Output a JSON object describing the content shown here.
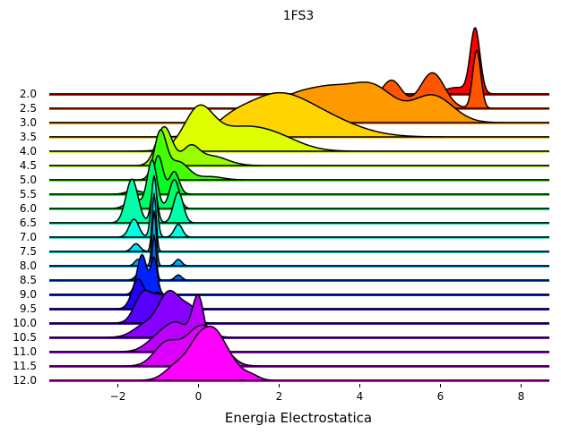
{
  "chart_data": {
    "type": "ridgeline",
    "title": "1FS3",
    "xlabel": "Energia Electrostatica",
    "ylabel": "",
    "xlim": [
      -3.7,
      8.7
    ],
    "xticks": [
      -2,
      0,
      2,
      4,
      6,
      8
    ],
    "xtick_labels": [
      "−2",
      "0",
      "2",
      "4",
      "6",
      "8"
    ],
    "grid": false,
    "legend": "none",
    "series": [
      {
        "name": "2.0",
        "color": "#ff0000",
        "peaks": [
          [
            6.86,
            0.12,
            1.0
          ],
          [
            6.4,
            0.3,
            0.1
          ]
        ]
      },
      {
        "name": "2.5",
        "color": "#ff5500",
        "peaks": [
          [
            6.9,
            0.1,
            0.9
          ],
          [
            5.8,
            0.3,
            0.55
          ],
          [
            4.8,
            0.25,
            0.4
          ],
          [
            4.0,
            0.5,
            0.12
          ]
        ]
      },
      {
        "name": "3.0",
        "color": "#ff9900",
        "peaks": [
          [
            5.8,
            0.5,
            0.42
          ],
          [
            4.4,
            0.5,
            0.4
          ],
          [
            3.2,
            0.8,
            0.55
          ],
          [
            2.2,
            0.4,
            0.15
          ]
        ]
      },
      {
        "name": "3.5",
        "color": "#ffd400",
        "peaks": [
          [
            1.8,
            0.8,
            0.55
          ],
          [
            3.0,
            0.9,
            0.28
          ],
          [
            0.8,
            0.4,
            0.12
          ]
        ]
      },
      {
        "name": "4.0",
        "color": "#ddff00",
        "peaks": [
          [
            0.0,
            0.35,
            0.55
          ],
          [
            1.0,
            0.8,
            0.35
          ],
          [
            2.0,
            0.6,
            0.12
          ]
        ]
      },
      {
        "name": "4.5",
        "color": "#99ff00",
        "peaks": [
          [
            -0.85,
            0.2,
            0.6
          ],
          [
            -0.2,
            0.2,
            0.25
          ],
          [
            0.3,
            0.4,
            0.15
          ]
        ]
      },
      {
        "name": "5.0",
        "color": "#44ff00",
        "peaks": [
          [
            -0.95,
            0.15,
            0.72
          ],
          [
            -0.5,
            0.25,
            0.28
          ],
          [
            0.3,
            0.3,
            0.05
          ]
        ]
      },
      {
        "name": "5.5",
        "color": "#00ff22",
        "peaks": [
          [
            -1.0,
            0.12,
            0.6
          ],
          [
            -0.6,
            0.12,
            0.35
          ],
          [
            -1.6,
            0.18,
            0.06
          ]
        ]
      },
      {
        "name": "6.0",
        "color": "#00ff66",
        "peaks": [
          [
            -1.15,
            0.12,
            0.75
          ],
          [
            -0.6,
            0.12,
            0.45
          ],
          [
            -1.6,
            0.18,
            0.15
          ]
        ]
      },
      {
        "name": "6.5",
        "color": "#00ffa8",
        "peaks": [
          [
            -1.65,
            0.15,
            0.68
          ],
          [
            -1.1,
            0.08,
            0.55
          ],
          [
            -0.5,
            0.12,
            0.48
          ]
        ]
      },
      {
        "name": "7.0",
        "color": "#00ffe0",
        "peaks": [
          [
            -1.1,
            0.07,
            0.95
          ],
          [
            -1.6,
            0.12,
            0.28
          ],
          [
            -0.5,
            0.1,
            0.2
          ]
        ]
      },
      {
        "name": "7.5",
        "color": "#00ddff",
        "peaks": [
          [
            -1.1,
            0.05,
            0.9
          ],
          [
            -1.55,
            0.1,
            0.12
          ]
        ]
      },
      {
        "name": "8.0",
        "color": "#00a8ff",
        "peaks": [
          [
            -1.1,
            0.05,
            0.85
          ],
          [
            -1.5,
            0.08,
            0.1
          ],
          [
            -0.5,
            0.08,
            0.1
          ]
        ]
      },
      {
        "name": "8.5",
        "color": "#0066ff",
        "peaks": [
          [
            -1.1,
            0.05,
            0.7
          ],
          [
            -1.45,
            0.1,
            0.12
          ],
          [
            -0.5,
            0.08,
            0.08
          ]
        ]
      },
      {
        "name": "9.0",
        "color": "#0022ff",
        "peaks": [
          [
            -1.4,
            0.12,
            0.62
          ],
          [
            -1.1,
            0.08,
            0.55
          ]
        ]
      },
      {
        "name": "9.5",
        "color": "#2200ff",
        "peaks": [
          [
            -1.5,
            0.15,
            0.45
          ],
          [
            -1.0,
            0.2,
            0.25
          ]
        ]
      },
      {
        "name": "10.0",
        "color": "#5500ff",
        "peaks": [
          [
            -1.4,
            0.2,
            0.38
          ],
          [
            -0.9,
            0.3,
            0.42
          ],
          [
            -0.3,
            0.2,
            0.15
          ]
        ]
      },
      {
        "name": "10.5",
        "color": "#8800ff",
        "peaks": [
          [
            -0.75,
            0.25,
            0.6
          ],
          [
            -0.2,
            0.3,
            0.45
          ],
          [
            -1.3,
            0.3,
            0.2
          ]
        ]
      },
      {
        "name": "11.0",
        "color": "#bb00ff",
        "peaks": [
          [
            0.0,
            0.15,
            0.78
          ],
          [
            -0.5,
            0.3,
            0.4
          ],
          [
            -1.0,
            0.3,
            0.2
          ]
        ]
      },
      {
        "name": "11.5",
        "color": "#dd00ff",
        "peaks": [
          [
            0.0,
            0.35,
            0.55
          ],
          [
            -0.8,
            0.3,
            0.35
          ],
          [
            0.5,
            0.3,
            0.25
          ]
        ]
      },
      {
        "name": "12.0",
        "color": "#ff00ff",
        "peaks": [
          [
            0.4,
            0.25,
            0.6
          ],
          [
            0.0,
            0.25,
            0.5
          ],
          [
            -0.5,
            0.3,
            0.25
          ],
          [
            0.8,
            0.25,
            0.25
          ],
          [
            1.3,
            0.2,
            0.08
          ]
        ]
      }
    ]
  }
}
